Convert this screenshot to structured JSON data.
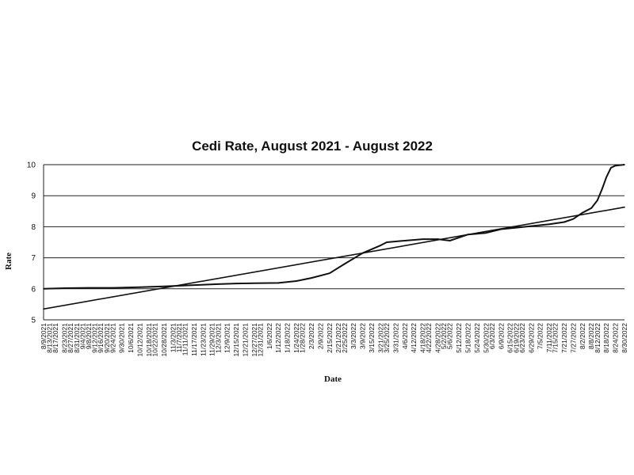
{
  "chart_data": {
    "type": "line",
    "title": "Cedi Rate, August 2021 - August 2022",
    "xlabel": "Date",
    "ylabel": "Rate",
    "ylim": [
      5,
      10
    ],
    "yticks": [
      "5",
      "6",
      "7",
      "8",
      "9",
      "10"
    ],
    "grid": "horizontal",
    "xlim": [
      "8/9/2021",
      "8/30/2022"
    ],
    "x_tick_labels": [
      "8/9/2021",
      "8/13/2021",
      "8/17/2021",
      "8/23/2021",
      "8/27/2021",
      "8/31/2021",
      "9/4/2021",
      "9/8/2021",
      "9/12/2021",
      "9/16/2021",
      "9/20/2021",
      "9/24/2021",
      "9/30/2021",
      "10/6/2021",
      "10/12/2021",
      "10/18/2021",
      "10/22/2021",
      "10/28/2021",
      "11/3/2021",
      "11/7/2021",
      "11/11/2021",
      "11/17/2021",
      "11/23/2021",
      "11/29/2021",
      "12/3/2021",
      "12/9/2021",
      "12/15/2021",
      "12/21/2021",
      "12/27/2021",
      "12/31/2021",
      "1/6/2022",
      "1/12/2022",
      "1/18/2022",
      "1/24/2022",
      "1/28/2022",
      "2/3/2022",
      "2/9/2022",
      "2/15/2022",
      "2/21/2022",
      "2/25/2022",
      "3/3/2022",
      "3/9/2022",
      "3/15/2022",
      "3/21/2022",
      "3/25/2022",
      "3/31/2022",
      "4/6/2022",
      "4/12/2022",
      "4/18/2022",
      "4/22/2022",
      "4/28/2022",
      "5/2/2022",
      "5/6/2022",
      "5/12/2022",
      "5/18/2022",
      "5/24/2022",
      "5/30/2022",
      "6/3/2022",
      "6/9/2022",
      "6/15/2022",
      "6/19/2022",
      "6/23/2022",
      "6/29/2022",
      "7/5/2022",
      "7/11/2022",
      "7/15/2022",
      "7/21/2022",
      "7/27/2022",
      "8/2/2022",
      "8/8/2022",
      "8/12/2022",
      "8/18/2022",
      "8/24/2022",
      "8/30/2022"
    ],
    "series": [
      {
        "type": "line",
        "x": [
          "8/9/2021",
          "8/23/2021",
          "9/8/2021",
          "9/24/2021",
          "10/12/2021",
          "10/28/2021",
          "11/17/2021",
          "12/3/2021",
          "12/15/2021",
          "12/27/2021",
          "1/12/2022",
          "1/24/2022",
          "2/3/2022",
          "2/15/2022",
          "2/25/2022",
          "3/9/2022",
          "3/21/2022",
          "3/25/2022",
          "4/6/2022",
          "4/18/2022",
          "4/28/2022",
          "5/6/2022",
          "5/18/2022",
          "5/30/2022",
          "6/9/2022",
          "6/19/2022",
          "6/29/2022",
          "7/11/2022",
          "7/21/2022",
          "7/27/2022",
          "8/2/2022",
          "8/8/2022",
          "8/12/2022",
          "8/15/2022",
          "8/18/2022",
          "8/21/2022",
          "8/24/2022",
          "8/30/2022"
        ],
        "values": [
          6.0,
          6.02,
          6.03,
          6.03,
          6.05,
          6.08,
          6.12,
          6.15,
          6.17,
          6.18,
          6.19,
          6.25,
          6.35,
          6.5,
          6.8,
          7.15,
          7.4,
          7.5,
          7.55,
          7.6,
          7.6,
          7.55,
          7.75,
          7.8,
          7.92,
          7.97,
          8.02,
          8.08,
          8.15,
          8.25,
          8.45,
          8.6,
          8.85,
          9.2,
          9.6,
          9.9,
          9.97,
          10.0
        ]
      },
      {
        "type": "linear-trend",
        "x": [
          "8/9/2021",
          "8/30/2022"
        ],
        "values": [
          5.35,
          8.63
        ]
      }
    ]
  }
}
